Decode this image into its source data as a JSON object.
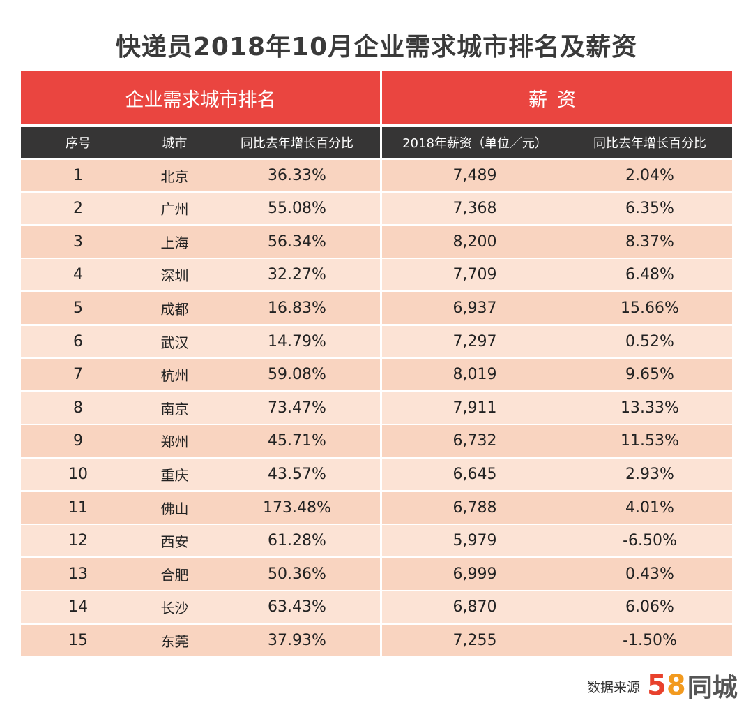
{
  "title": "快递员2018年10月企业需求城市排名及薪资",
  "group_headers": [
    "企业需求城市排名",
    "薪资"
  ],
  "chart_data": {
    "type": "table",
    "title": "快递员2018年10月企业需求城市排名及薪资",
    "columns": [
      "序号",
      "城市",
      "同比去年增长百分比",
      "2018年薪资（单位／元）",
      "同比去年增长百分比"
    ],
    "rows": [
      [
        "1",
        "北京",
        "36.33%",
        "7,489",
        "2.04%"
      ],
      [
        "2",
        "广州",
        "55.08%",
        "7,368",
        "6.35%"
      ],
      [
        "3",
        "上海",
        "56.34%",
        "8,200",
        "8.37%"
      ],
      [
        "4",
        "深圳",
        "32.27%",
        "7,709",
        "6.48%"
      ],
      [
        "5",
        "成都",
        "16.83%",
        "6,937",
        "15.66%"
      ],
      [
        "6",
        "武汉",
        "14.79%",
        "7,297",
        "0.52%"
      ],
      [
        "7",
        "杭州",
        "59.08%",
        "8,019",
        "9.65%"
      ],
      [
        "8",
        "南京",
        "73.47%",
        "7,911",
        "13.33%"
      ],
      [
        "9",
        "郑州",
        "45.71%",
        "6,732",
        "11.53%"
      ],
      [
        "10",
        "重庆",
        "43.57%",
        "6,645",
        "2.93%"
      ],
      [
        "11",
        "佛山",
        "173.48%",
        "6,788",
        "4.01%"
      ],
      [
        "12",
        "西安",
        "61.28%",
        "5,979",
        "-6.50%"
      ],
      [
        "13",
        "合肥",
        "50.36%",
        "6,999",
        "0.43%"
      ],
      [
        "14",
        "长沙",
        "63.43%",
        "6,870",
        "6.06%"
      ],
      [
        "15",
        "东莞",
        "37.93%",
        "7,255",
        "-1.50%"
      ]
    ]
  },
  "colors": {
    "header_red": "#ea4540",
    "header_dark": "#363535",
    "row_odd": "#f9d4c0",
    "row_even": "#fce3d5"
  },
  "footer": {
    "source_label": "数据来源",
    "logo_number": "58",
    "logo_text": "同城"
  }
}
